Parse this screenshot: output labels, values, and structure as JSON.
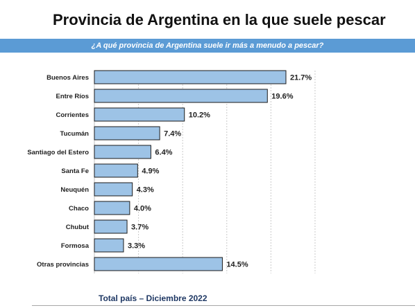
{
  "header": {
    "title": "Provincia de Argentina en la que suele pescar",
    "question": "¿A qué provincia de Argentina suele ir más a menudo a pescar?"
  },
  "footer": {
    "note": "Total país – Diciembre 2022"
  },
  "colors": {
    "bar_fill": "#9dc3e6",
    "banner": "#5b9bd5"
  },
  "chart_data": {
    "type": "bar",
    "orientation": "horizontal",
    "title": "",
    "xlabel": "",
    "ylabel": "",
    "grid": true,
    "xlim": [
      0,
      25
    ],
    "categories": [
      "Buenos Aires",
      "Entre Ríos",
      "Corrientes",
      "Tucumán",
      "Santiago del Estero",
      "Santa Fe",
      "Neuquén",
      "Chaco",
      "Chubut",
      "Formosa",
      "Otras provincias"
    ],
    "values": [
      21.7,
      19.6,
      10.2,
      7.4,
      6.4,
      4.9,
      4.3,
      4.0,
      3.7,
      3.3,
      14.5
    ],
    "value_labels": [
      "21.7%",
      "19.6%",
      "10.2%",
      "7.4%",
      "6.4%",
      "4.9%",
      "4.3%",
      "4.0%",
      "3.7%",
      "3.3%",
      "14.5%"
    ]
  }
}
